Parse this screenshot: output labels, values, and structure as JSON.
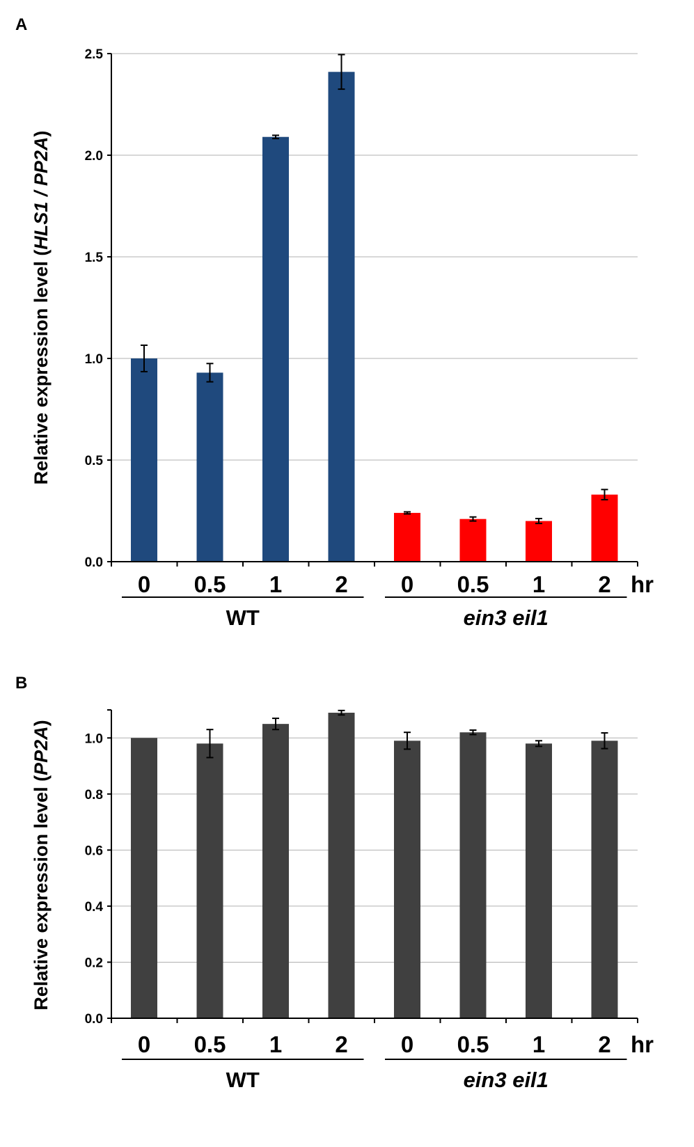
{
  "chart_data": [
    {
      "panel": "A",
      "type": "bar",
      "ylabel_parts": [
        {
          "text": "Relative expression level (",
          "italic": false
        },
        {
          "text": "HLS1 / PP2A",
          "italic": true
        },
        {
          "text": ")",
          "italic": false
        }
      ],
      "ylim": [
        0,
        2.5
      ],
      "yticks": [
        "0.0",
        "0.5",
        "1.0",
        "1.5",
        "2.0",
        "2.5"
      ],
      "grid": true,
      "categories": [
        "0",
        "0.5",
        "1",
        "2",
        "0",
        "0.5",
        "1",
        "2"
      ],
      "unit_label": "hr",
      "groups": [
        {
          "name": "WT",
          "italic": false,
          "color": "#1f497d",
          "values": [
            1.0,
            0.93,
            2.09,
            2.41
          ],
          "errors": [
            0.065,
            0.045,
            0.008,
            0.085
          ]
        },
        {
          "name": "ein3 eil1",
          "italic": true,
          "color": "#ff0000",
          "values": [
            0.24,
            0.21,
            0.2,
            0.33
          ],
          "errors": [
            0.005,
            0.01,
            0.012,
            0.025
          ]
        }
      ]
    },
    {
      "panel": "B",
      "type": "bar",
      "ylabel_parts": [
        {
          "text": "Relative expression level (",
          "italic": false
        },
        {
          "text": "PP2A",
          "italic": true
        },
        {
          "text": ")",
          "italic": false
        }
      ],
      "ylim": [
        0,
        1.1
      ],
      "yticks": [
        "0.0",
        "0.2",
        "0.4",
        "0.6",
        "0.8",
        "1.0"
      ],
      "grid": true,
      "categories": [
        "0",
        "0.5",
        "1",
        "2",
        "0",
        "0.5",
        "1",
        "2"
      ],
      "unit_label": "hr",
      "groups": [
        {
          "name": "WT",
          "italic": false,
          "color": "#404040",
          "values": [
            1.0,
            0.98,
            1.05,
            1.09
          ],
          "errors": [
            0.0,
            0.05,
            0.02,
            0.008
          ]
        },
        {
          "name": "ein3 eil1",
          "italic": true,
          "color": "#404040",
          "values": [
            0.99,
            1.02,
            0.98,
            0.99
          ],
          "errors": [
            0.03,
            0.008,
            0.01,
            0.028
          ]
        }
      ]
    }
  ]
}
